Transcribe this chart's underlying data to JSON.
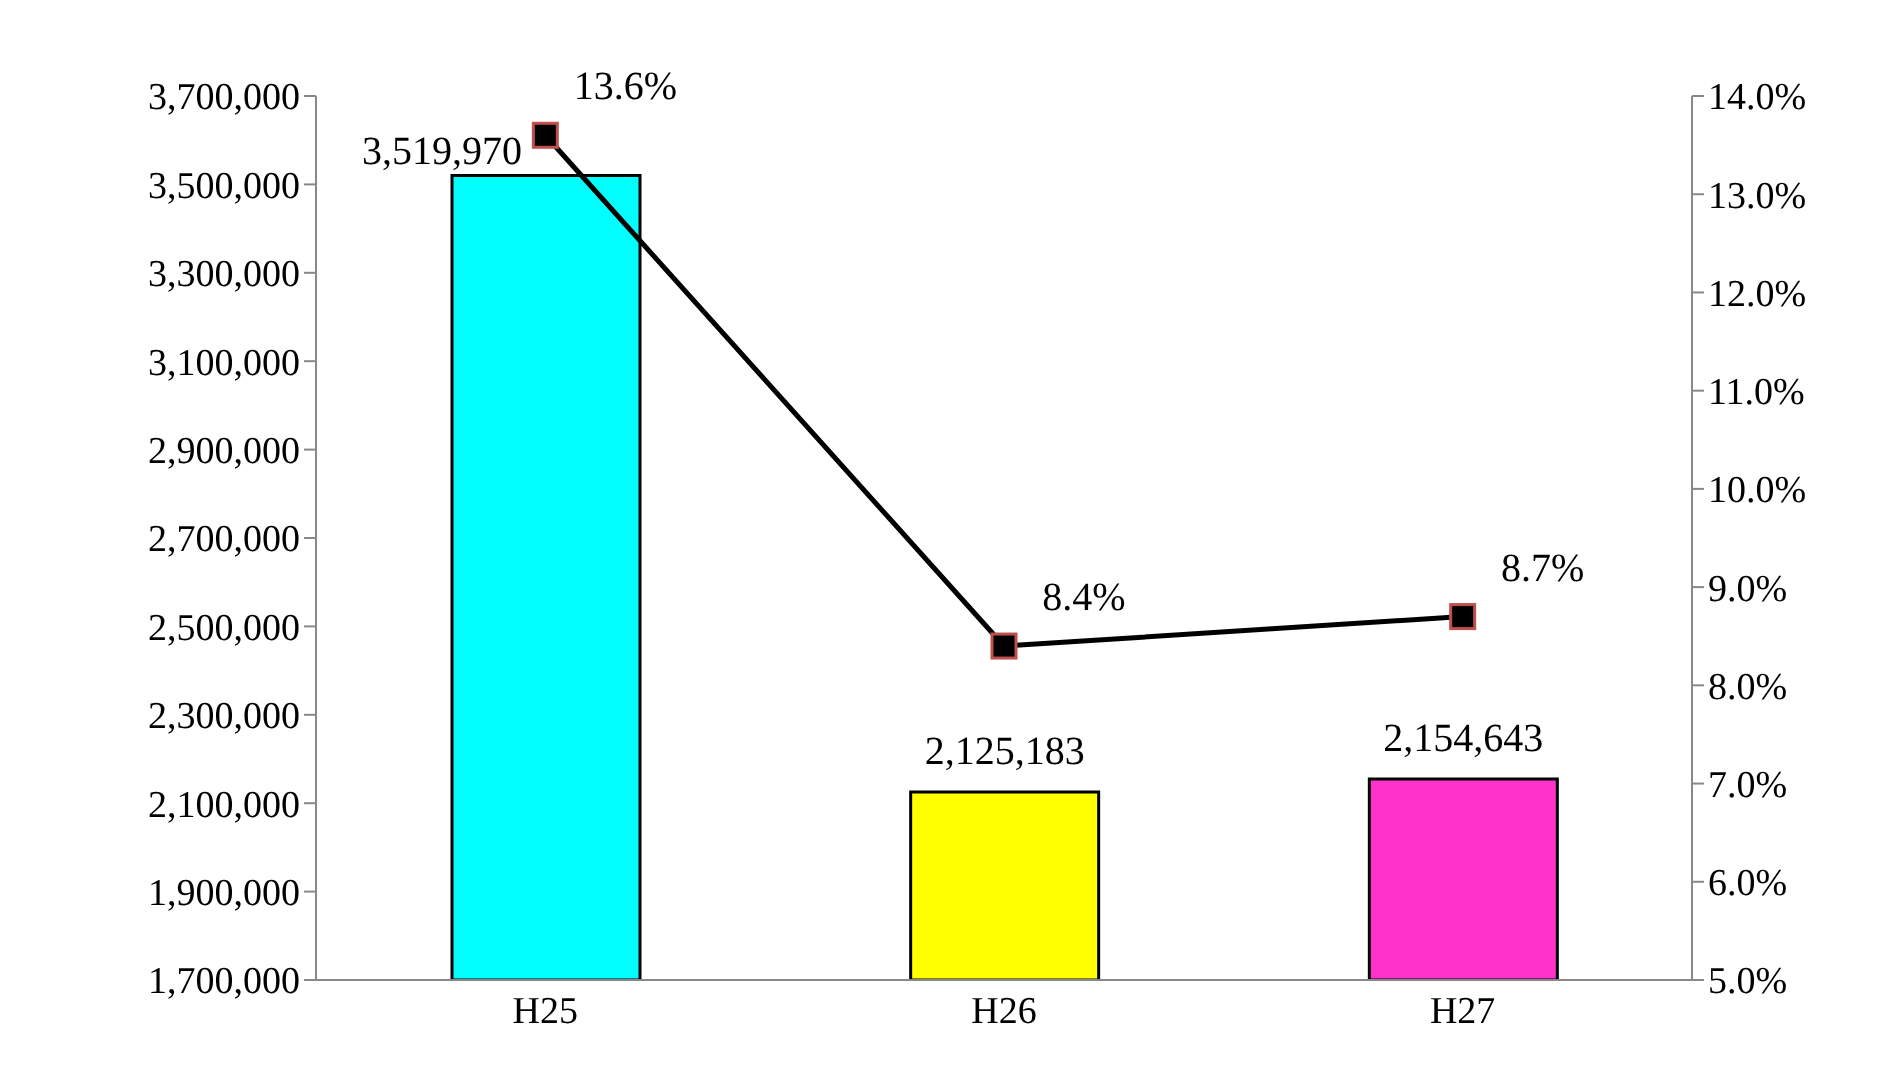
{
  "chart_data": {
    "type": "bar",
    "categories": [
      "H25",
      "H26",
      "H27"
    ],
    "series": [
      {
        "colors": [
          "#00ffff",
          "#ffff00",
          "#ff33cc"
        ],
        "values": [
          3519970,
          2125183,
          2154643
        ],
        "value_labels": [
          "3,519,970",
          "2,125,183",
          "2,154,643"
        ]
      },
      {
        "type": "line",
        "axis": "y2",
        "color": "#000000",
        "values": [
          13.6,
          8.4,
          8.7
        ],
        "value_labels": [
          "13.6%",
          "8.4%",
          "8.7%"
        ]
      }
    ],
    "ylim": [
      1700000,
      3700000
    ],
    "yticks": [
      {
        "value": 1700000,
        "label": "1,700,000"
      },
      {
        "value": 1900000,
        "label": "1,900,000"
      },
      {
        "value": 2100000,
        "label": "2,100,000"
      },
      {
        "value": 2300000,
        "label": "2,300,000"
      },
      {
        "value": 2500000,
        "label": "2,500,000"
      },
      {
        "value": 2700000,
        "label": "2,700,000"
      },
      {
        "value": 2900000,
        "label": "2,900,000"
      },
      {
        "value": 3100000,
        "label": "3,100,000"
      },
      {
        "value": 3300000,
        "label": "3,300,000"
      },
      {
        "value": 3500000,
        "label": "3,500,000"
      },
      {
        "value": 3700000,
        "label": "3,700,000"
      }
    ],
    "y2lim": [
      5,
      14
    ],
    "y2ticks": [
      {
        "value": 5,
        "label": "5.0%"
      },
      {
        "value": 6,
        "label": "6.0%"
      },
      {
        "value": 7,
        "label": "7.0%"
      },
      {
        "value": 8,
        "label": "8.0%"
      },
      {
        "value": 9,
        "label": "9.0%"
      },
      {
        "value": 10,
        "label": "10.0%"
      },
      {
        "value": 11,
        "label": "11.0%"
      },
      {
        "value": 12,
        "label": "12.0%"
      },
      {
        "value": 13,
        "label": "13.0%"
      },
      {
        "value": 14,
        "label": "14.0%"
      }
    ],
    "marker": "square"
  }
}
